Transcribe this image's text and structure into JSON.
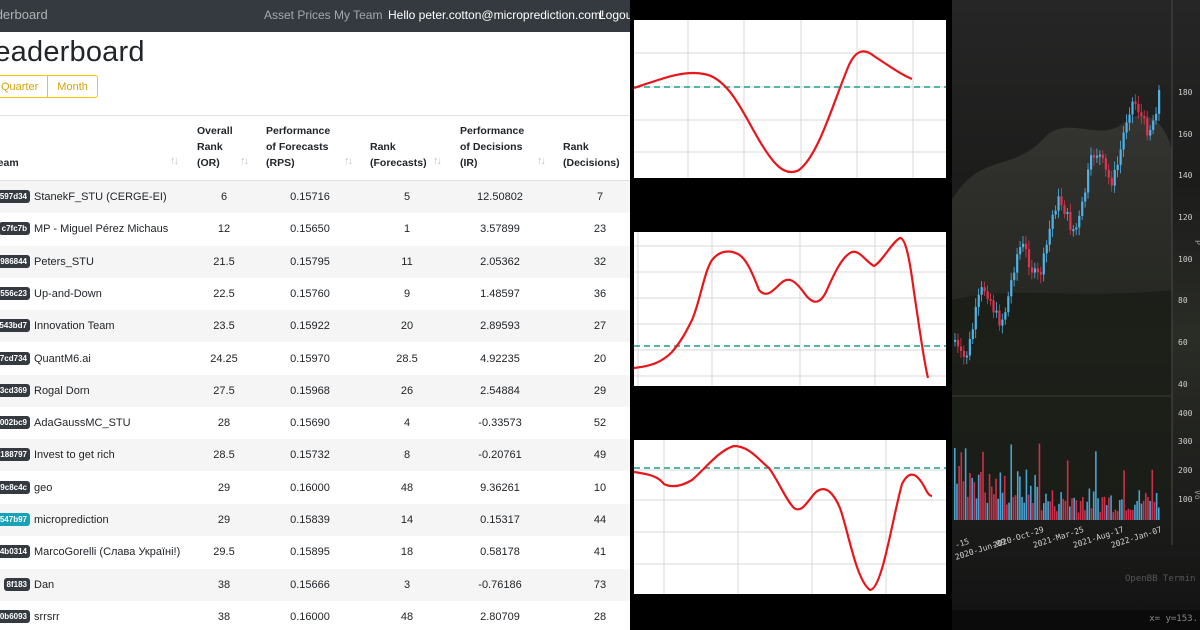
{
  "navbar": {
    "brand": "Leaderboard",
    "links": [
      {
        "label": "Asset Prices"
      },
      {
        "label": "My Team"
      }
    ],
    "greeting": "Hello peter.cotton@microprediction.com!",
    "logout": "Logout"
  },
  "page": {
    "title": "Leaderboard",
    "period_buttons": [
      "Quarter",
      "Month"
    ]
  },
  "table": {
    "columns": [
      "Team",
      "Overall\nRank\n(OR)",
      "Performance\nof Forecasts\n(RPS)",
      "Rank\n(Forecasts)",
      "Performance\nof Decisions\n(IR)",
      "Rank\n(Decisions)"
    ],
    "rows": [
      {
        "id": "597d34",
        "team": "StanekF_STU (CERGE-EI)",
        "or": "6",
        "rps": "0.15716",
        "rank_f": "5",
        "ir": "12.50802",
        "rank_d": "7"
      },
      {
        "id": "c7fc7b",
        "team": "MP - Miguel Pérez Michaus",
        "or": "12",
        "rps": "0.15650",
        "rank_f": "1",
        "ir": "3.57899",
        "rank_d": "23"
      },
      {
        "id": "986844",
        "team": "Peters_STU",
        "or": "21.5",
        "rps": "0.15795",
        "rank_f": "11",
        "ir": "2.05362",
        "rank_d": "32"
      },
      {
        "id": "556c23",
        "team": "Up-and-Down",
        "or": "22.5",
        "rps": "0.15760",
        "rank_f": "9",
        "ir": "1.48597",
        "rank_d": "36"
      },
      {
        "id": "543bd7",
        "team": "Innovation Team",
        "or": "23.5",
        "rps": "0.15922",
        "rank_f": "20",
        "ir": "2.89593",
        "rank_d": "27"
      },
      {
        "id": "7cd734",
        "team": "QuantM6.ai",
        "or": "24.25",
        "rps": "0.15970",
        "rank_f": "28.5",
        "ir": "4.92235",
        "rank_d": "20"
      },
      {
        "id": "3cd369",
        "team": "Rogal Dorn",
        "or": "27.5",
        "rps": "0.15968",
        "rank_f": "26",
        "ir": "2.54884",
        "rank_d": "29"
      },
      {
        "id": "002bc9",
        "team": "AdaGaussMC_STU",
        "or": "28",
        "rps": "0.15690",
        "rank_f": "4",
        "ir": "-0.33573",
        "rank_d": "52"
      },
      {
        "id": "188797",
        "team": "Invest to get rich",
        "or": "28.5",
        "rps": "0.15732",
        "rank_f": "8",
        "ir": "-0.20761",
        "rank_d": "49"
      },
      {
        "id": "9c8c4c",
        "team": "geo",
        "or": "29",
        "rps": "0.16000",
        "rank_f": "48",
        "ir": "9.36261",
        "rank_d": "10"
      },
      {
        "id": "547b97",
        "team": "microprediction",
        "or": "29",
        "rps": "0.15839",
        "rank_f": "14",
        "ir": "0.15317",
        "rank_d": "44",
        "highlight": true
      },
      {
        "id": "4b0314",
        "team": "MarcoGorelli (Слава Україні!)",
        "or": "29.5",
        "rps": "0.15895",
        "rank_f": "18",
        "ir": "0.58178",
        "rank_d": "41"
      },
      {
        "id": "8f183",
        "team": "Dan",
        "or": "38",
        "rps": "0.15666",
        "rank_f": "3",
        "ir": "-0.76186",
        "rank_d": "73"
      },
      {
        "id": "0b6093",
        "team": "srrsrr",
        "or": "38",
        "rps": "0.16000",
        "rank_f": "48",
        "ir": "2.80709",
        "rank_d": "28"
      }
    ]
  },
  "colors": {
    "navbar_bg": "#343a40",
    "period_button": "#ffc107",
    "badge": "#343a40",
    "badge_highlight": "#17a2b8",
    "curve": "#e8161b",
    "reference_line": "#1a9e8a",
    "candle_up": "#4fb3e8",
    "candle_down": "#e0334f"
  },
  "price_chart": {
    "y_ticks": [
      "180",
      "160",
      "140",
      "120",
      "100",
      "80",
      "60",
      "40"
    ],
    "volume_ticks": [
      "400",
      "300",
      "200",
      "100"
    ],
    "x_ticks": [
      "2020-Jun-09",
      "2020-Oct-29",
      "2021-Mar-25",
      "2021-Aug-17",
      "2022-Jan-07"
    ],
    "partial_x_tick": "-15",
    "ylabel_partial": "P",
    "volume_label_partial": "Vo",
    "watermark": "OpenBB Termin",
    "coordinate_readout": "x= y=153."
  },
  "curve_panels": [
    {
      "name": "panel-1"
    },
    {
      "name": "panel-2"
    },
    {
      "name": "panel-3"
    }
  ]
}
